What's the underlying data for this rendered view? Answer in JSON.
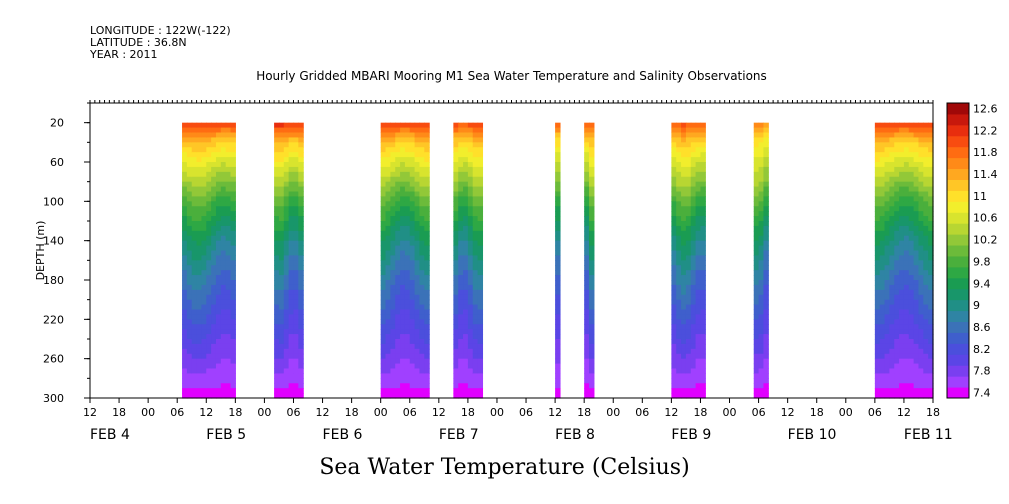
{
  "header": {
    "longitude": "LONGITUDE : 122W(-122)",
    "latitude": "LATITUDE : 36.8N",
    "year": "YEAR : 2011"
  },
  "title": "Hourly Gridded MBARI Mooring M1 Sea Water Temperature and Salinity Observations",
  "bottom_label": "Sea Water Temperature (Celsius)",
  "chart_data": {
    "type": "heatmap",
    "title": "Hourly Gridded MBARI Mooring M1 Sea Water Temperature and Salinity Observations",
    "xlabel": "",
    "ylabel": "DEPTH (m)",
    "colorbar_label": "Sea Water Temperature (Celsius)",
    "ylim": [
      300,
      0
    ],
    "y_inverted": true,
    "x_start_hour": 12,
    "x_hours_total": 174,
    "y_ticks": [
      20,
      60,
      100,
      140,
      180,
      220,
      260,
      300
    ],
    "hour_ticks": [
      "12",
      "18",
      "00",
      "06",
      "12",
      "18",
      "00",
      "06",
      "12",
      "18",
      "00",
      "06",
      "12",
      "18",
      "00",
      "06",
      "12",
      "18",
      "00",
      "06",
      "12",
      "18",
      "00",
      "06",
      "12",
      "18",
      "00",
      "06",
      "12",
      "18"
    ],
    "date_labels": [
      "FEB  4",
      "FEB  5",
      "FEB  6",
      "FEB  7",
      "FEB  8",
      "FEB  9",
      "FEB 10",
      "FEB 11"
    ],
    "date_label_hours": [
      0,
      24,
      48,
      72,
      96,
      120,
      144,
      168
    ],
    "colorbar": {
      "levels": [
        7.4,
        7.6,
        7.8,
        8.0,
        8.2,
        8.4,
        8.6,
        8.8,
        9.0,
        9.2,
        9.4,
        9.6,
        9.8,
        10.0,
        10.2,
        10.4,
        10.6,
        10.8,
        11.0,
        11.2,
        11.4,
        11.6,
        11.8,
        12.0,
        12.2,
        12.4,
        12.6,
        12.8
      ],
      "tick_labels": [
        "7.4",
        "7.8",
        "8.2",
        "8.6",
        "9",
        "9.4",
        "9.8",
        "10.2",
        "10.6",
        "11",
        "11.4",
        "11.8",
        "12.2",
        "12.6"
      ],
      "colors": [
        "#e000ff",
        "#a040ff",
        "#7a3ff0",
        "#5b45e6",
        "#4b4fdc",
        "#3f5fcc",
        "#3b72b8",
        "#2f84a4",
        "#208f86",
        "#18966a",
        "#1a9c52",
        "#2ea844",
        "#4aaf3c",
        "#6cbb3a",
        "#92c838",
        "#b8d632",
        "#d8e42e",
        "#f2ee2c",
        "#ffe02a",
        "#ffc626",
        "#ffa820",
        "#ff8a18",
        "#ff6c12",
        "#f84c10",
        "#e82e0e",
        "#c8180c",
        "#a00808"
      ]
    },
    "observation_periods": [
      {
        "start_hour": 19,
        "end_hour": 30,
        "surface": 12.2,
        "thermocline_depth": 45
      },
      {
        "start_hour": 38,
        "end_hour": 44,
        "surface": 12.3,
        "thermocline_depth": 50
      },
      {
        "start_hour": 60,
        "end_hour": 70,
        "surface": 12.2,
        "thermocline_depth": 50
      },
      {
        "start_hour": 75,
        "end_hour": 81,
        "surface": 12.1,
        "thermocline_depth": 48
      },
      {
        "start_hour": 96,
        "end_hour": 97,
        "surface": 11.9,
        "thermocline_depth": 40
      },
      {
        "start_hour": 102,
        "end_hour": 104,
        "surface": 12.0,
        "thermocline_depth": 45
      },
      {
        "start_hour": 120,
        "end_hour": 127,
        "surface": 12.0,
        "thermocline_depth": 40
      },
      {
        "start_hour": 137,
        "end_hour": 140,
        "surface": 11.6,
        "thermocline_depth": 40
      },
      {
        "start_hour": 162,
        "end_hour": 174,
        "surface": 12.2,
        "thermocline_depth": 45
      }
    ],
    "bottom_temperature": 7.5,
    "depth_profile": [
      {
        "depth": 20,
        "temp": 12.2
      },
      {
        "depth": 40,
        "temp": 11.3
      },
      {
        "depth": 60,
        "temp": 10.8
      },
      {
        "depth": 100,
        "temp": 9.9
      },
      {
        "depth": 140,
        "temp": 9.2
      },
      {
        "depth": 180,
        "temp": 8.7
      },
      {
        "depth": 220,
        "temp": 8.3
      },
      {
        "depth": 260,
        "temp": 7.9
      },
      {
        "depth": 300,
        "temp": 7.5
      }
    ]
  }
}
